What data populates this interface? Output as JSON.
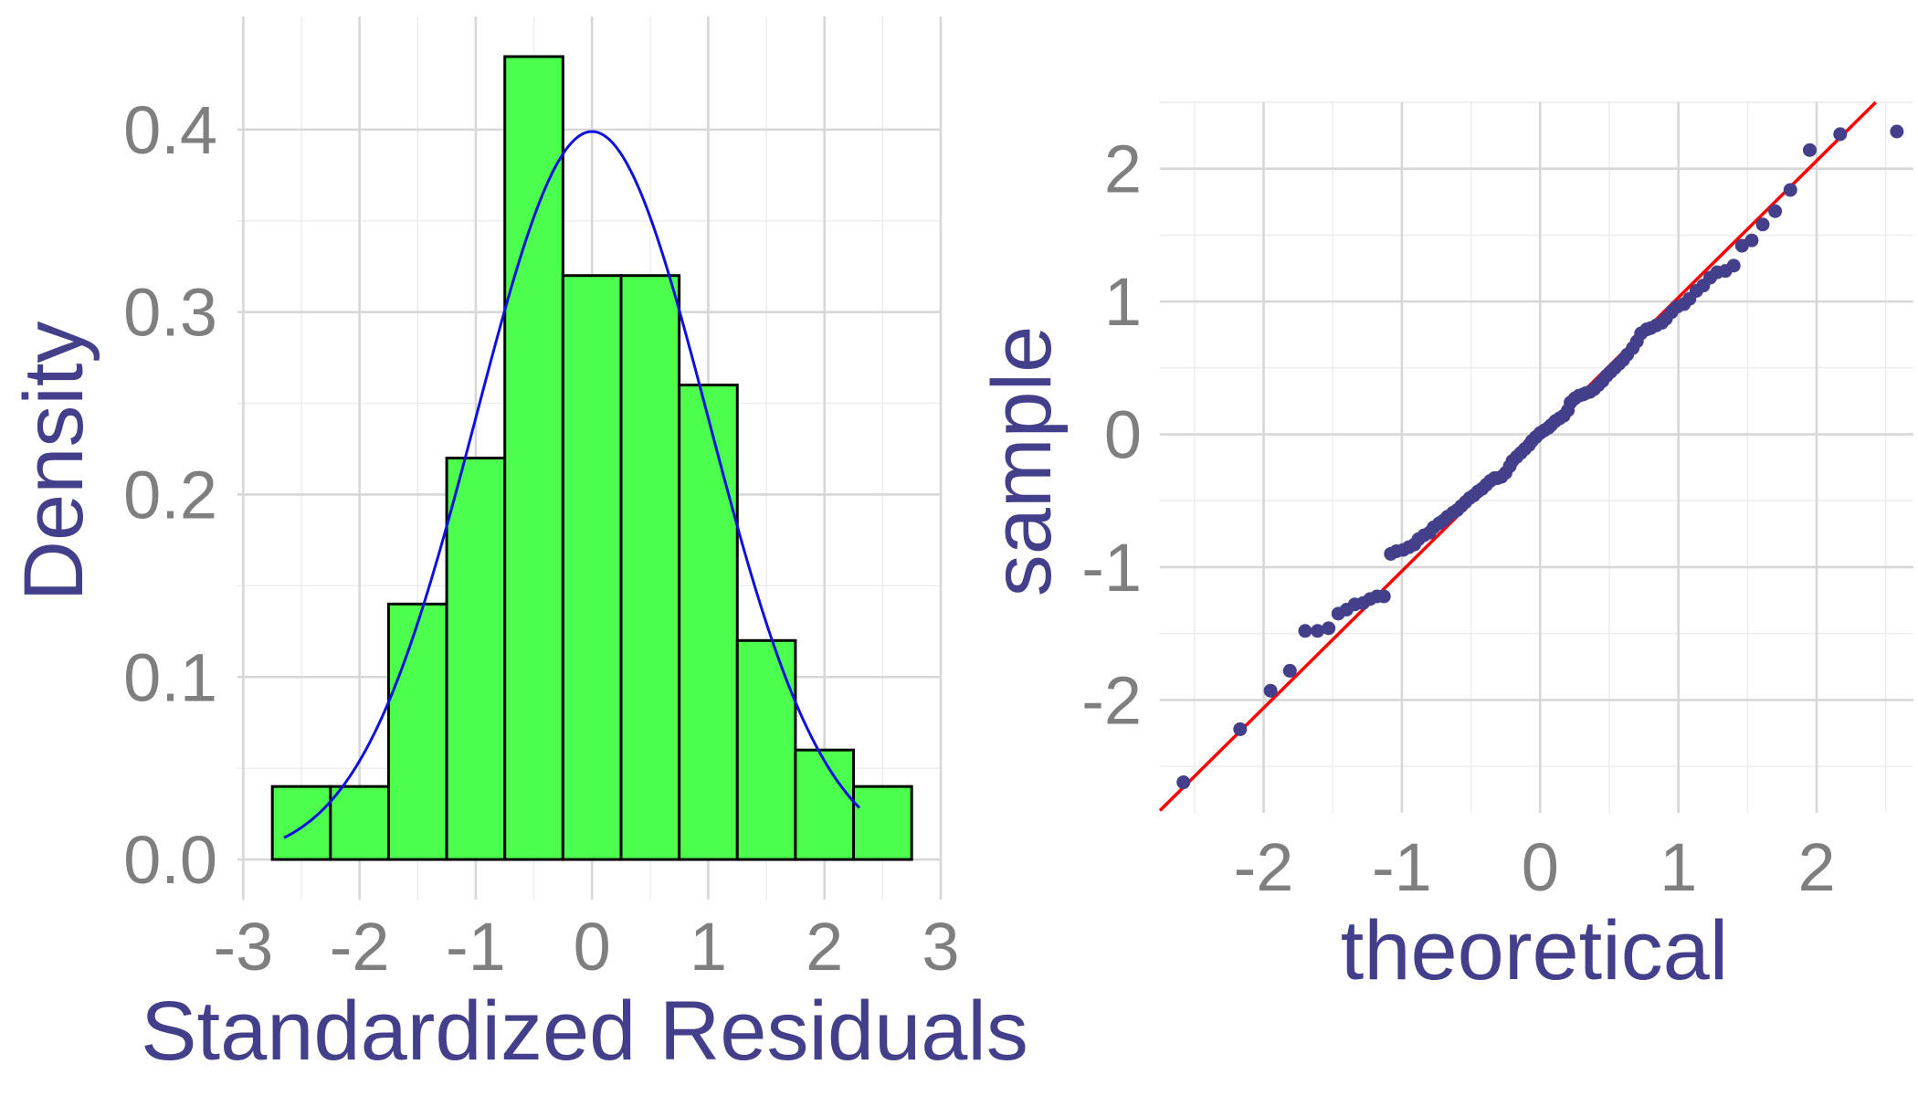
{
  "chart_data": [
    {
      "type": "bar",
      "subtype": "histogram-with-density-curve",
      "title": "",
      "xlabel": "Standardized Residuals",
      "ylabel": "Density",
      "xlim": [
        -3,
        3
      ],
      "ylim": [
        0,
        0.44
      ],
      "x_ticks": [
        "-3",
        "-2",
        "-1",
        "0",
        "1",
        "2",
        "3"
      ],
      "y_ticks": [
        "0.0",
        "0.1",
        "0.2",
        "0.3",
        "0.4"
      ],
      "grid": true,
      "bars": [
        {
          "x0": -2.75,
          "x1": -2.25,
          "density": 0.04
        },
        {
          "x0": -2.25,
          "x1": -1.75,
          "density": 0.04
        },
        {
          "x0": -1.75,
          "x1": -1.25,
          "density": 0.14
        },
        {
          "x0": -1.25,
          "x1": -0.75,
          "density": 0.22
        },
        {
          "x0": -0.75,
          "x1": -0.25,
          "density": 0.44
        },
        {
          "x0": -0.25,
          "x1": 0.25,
          "density": 0.32
        },
        {
          "x0": 0.25,
          "x1": 0.75,
          "density": 0.32
        },
        {
          "x0": 0.75,
          "x1": 1.25,
          "density": 0.26
        },
        {
          "x0": 1.25,
          "x1": 1.75,
          "density": 0.12
        },
        {
          "x0": 1.75,
          "x1": 2.25,
          "density": 0.06
        },
        {
          "x0": 2.25,
          "x1": 2.75,
          "density": 0.04
        }
      ],
      "curve": {
        "kind": "normal density",
        "mean": 0,
        "sd": 1,
        "x_range": [
          -2.65,
          2.3
        ]
      },
      "colors": {
        "bar_fill": "#4cff4c",
        "bar_edge": "#000000",
        "curve": "#1010dd"
      }
    },
    {
      "type": "scatter",
      "subtype": "qq-plot",
      "title": "",
      "xlabel": "theoretical",
      "ylabel": "sample",
      "xlim": [
        -2.75,
        2.7
      ],
      "ylim": [
        -2.85,
        2.5
      ],
      "x_ticks": [
        "-2",
        "-1",
        "0",
        "1",
        "2"
      ],
      "y_ticks": [
        "-2",
        "-1",
        "0",
        "1",
        "2"
      ],
      "grid": true,
      "points": [
        [
          -2.58,
          -2.62
        ],
        [
          -2.17,
          -2.22
        ],
        [
          -1.95,
          -1.93
        ],
        [
          -1.81,
          -1.78
        ],
        [
          -1.7,
          -1.48
        ],
        [
          -1.61,
          -1.48
        ],
        [
          -1.53,
          -1.46
        ],
        [
          -1.46,
          -1.35
        ],
        [
          -1.4,
          -1.32
        ],
        [
          -1.34,
          -1.28
        ],
        [
          -1.28,
          -1.27
        ],
        [
          -1.23,
          -1.24
        ],
        [
          -1.18,
          -1.22
        ],
        [
          -1.13,
          -1.22
        ],
        [
          -1.08,
          -0.9
        ],
        [
          -1.04,
          -0.88
        ],
        [
          -0.99,
          -0.87
        ],
        [
          -0.95,
          -0.85
        ],
        [
          -0.91,
          -0.83
        ],
        [
          -0.88,
          -0.79
        ],
        [
          -0.84,
          -0.76
        ],
        [
          -0.8,
          -0.74
        ],
        [
          -0.77,
          -0.7
        ],
        [
          -0.73,
          -0.67
        ],
        [
          -0.7,
          -0.65
        ],
        [
          -0.67,
          -0.62
        ],
        [
          -0.63,
          -0.59
        ],
        [
          -0.6,
          -0.57
        ],
        [
          -0.57,
          -0.54
        ],
        [
          -0.54,
          -0.51
        ],
        [
          -0.51,
          -0.48
        ],
        [
          -0.48,
          -0.46
        ],
        [
          -0.45,
          -0.43
        ],
        [
          -0.42,
          -0.41
        ],
        [
          -0.39,
          -0.38
        ],
        [
          -0.36,
          -0.35
        ],
        [
          -0.33,
          -0.33
        ],
        [
          -0.31,
          -0.33
        ],
        [
          -0.28,
          -0.32
        ],
        [
          -0.25,
          -0.29
        ],
        [
          -0.22,
          -0.24
        ],
        [
          -0.2,
          -0.2
        ],
        [
          -0.17,
          -0.17
        ],
        [
          -0.14,
          -0.14
        ],
        [
          -0.11,
          -0.11
        ],
        [
          -0.08,
          -0.08
        ],
        [
          -0.06,
          -0.05
        ],
        [
          -0.03,
          -0.02
        ],
        [
          0.0,
          0.01
        ],
        [
          0.03,
          0.03
        ],
        [
          0.06,
          0.05
        ],
        [
          0.08,
          0.07
        ],
        [
          0.11,
          0.1
        ],
        [
          0.14,
          0.12
        ],
        [
          0.17,
          0.14
        ],
        [
          0.2,
          0.18
        ],
        [
          0.22,
          0.24
        ],
        [
          0.25,
          0.27
        ],
        [
          0.28,
          0.29
        ],
        [
          0.31,
          0.3
        ],
        [
          0.33,
          0.31
        ],
        [
          0.36,
          0.32
        ],
        [
          0.39,
          0.34
        ],
        [
          0.42,
          0.37
        ],
        [
          0.45,
          0.4
        ],
        [
          0.48,
          0.44
        ],
        [
          0.51,
          0.47
        ],
        [
          0.54,
          0.5
        ],
        [
          0.57,
          0.53
        ],
        [
          0.6,
          0.56
        ],
        [
          0.63,
          0.6
        ],
        [
          0.67,
          0.65
        ],
        [
          0.7,
          0.7
        ],
        [
          0.73,
          0.76
        ],
        [
          0.77,
          0.79
        ],
        [
          0.8,
          0.8
        ],
        [
          0.84,
          0.82
        ],
        [
          0.88,
          0.84
        ],
        [
          0.91,
          0.87
        ],
        [
          0.95,
          0.92
        ],
        [
          0.99,
          0.96
        ],
        [
          1.04,
          0.98
        ],
        [
          1.08,
          1.02
        ],
        [
          1.13,
          1.08
        ],
        [
          1.18,
          1.12
        ],
        [
          1.23,
          1.18
        ],
        [
          1.28,
          1.22
        ],
        [
          1.34,
          1.23
        ],
        [
          1.4,
          1.27
        ],
        [
          1.46,
          1.42
        ],
        [
          1.53,
          1.46
        ],
        [
          1.61,
          1.58
        ],
        [
          1.7,
          1.68
        ],
        [
          1.81,
          1.84
        ],
        [
          1.95,
          2.14
        ],
        [
          2.17,
          2.26
        ],
        [
          2.58,
          2.28
        ]
      ],
      "reference_line": {
        "intercept": 0,
        "slope": 1.03
      },
      "colors": {
        "points": "#433f8a",
        "line": "#ff0000"
      }
    }
  ]
}
